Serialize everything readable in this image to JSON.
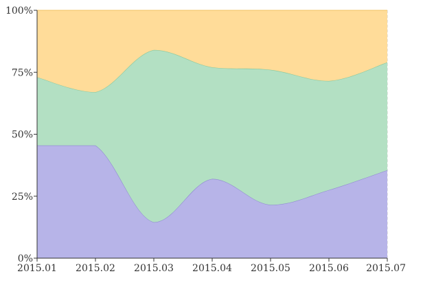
{
  "chart_data": {
    "type": "area",
    "stacking": "percent",
    "x": [
      "2015.01",
      "2015.02",
      "2015.03",
      "2015.04",
      "2015.05",
      "2015.06",
      "2015.07"
    ],
    "series": [
      {
        "values": [
          45.5,
          45.5,
          14.5,
          32,
          21.5,
          27.5,
          35.5
        ],
        "color": "#b7b4e8",
        "line_color": "#8f8cd0"
      },
      {
        "values": [
          27.5,
          21.5,
          69.5,
          45,
          54.5,
          44,
          43.5
        ],
        "color": "#b3e0c3",
        "line_color": "#8cc99f"
      },
      {
        "values": [
          27,
          33,
          16,
          23,
          24,
          28.5,
          21
        ],
        "color": "#ffdc99",
        "line_color": "#f0c060"
      }
    ],
    "y_ticks": [
      "0%",
      "25%",
      "50%",
      "75%",
      "100%"
    ],
    "ylim": [
      0,
      100
    ],
    "grid": true,
    "grid_style": "dashed",
    "title": "",
    "xlabel": "",
    "ylabel": ""
  }
}
